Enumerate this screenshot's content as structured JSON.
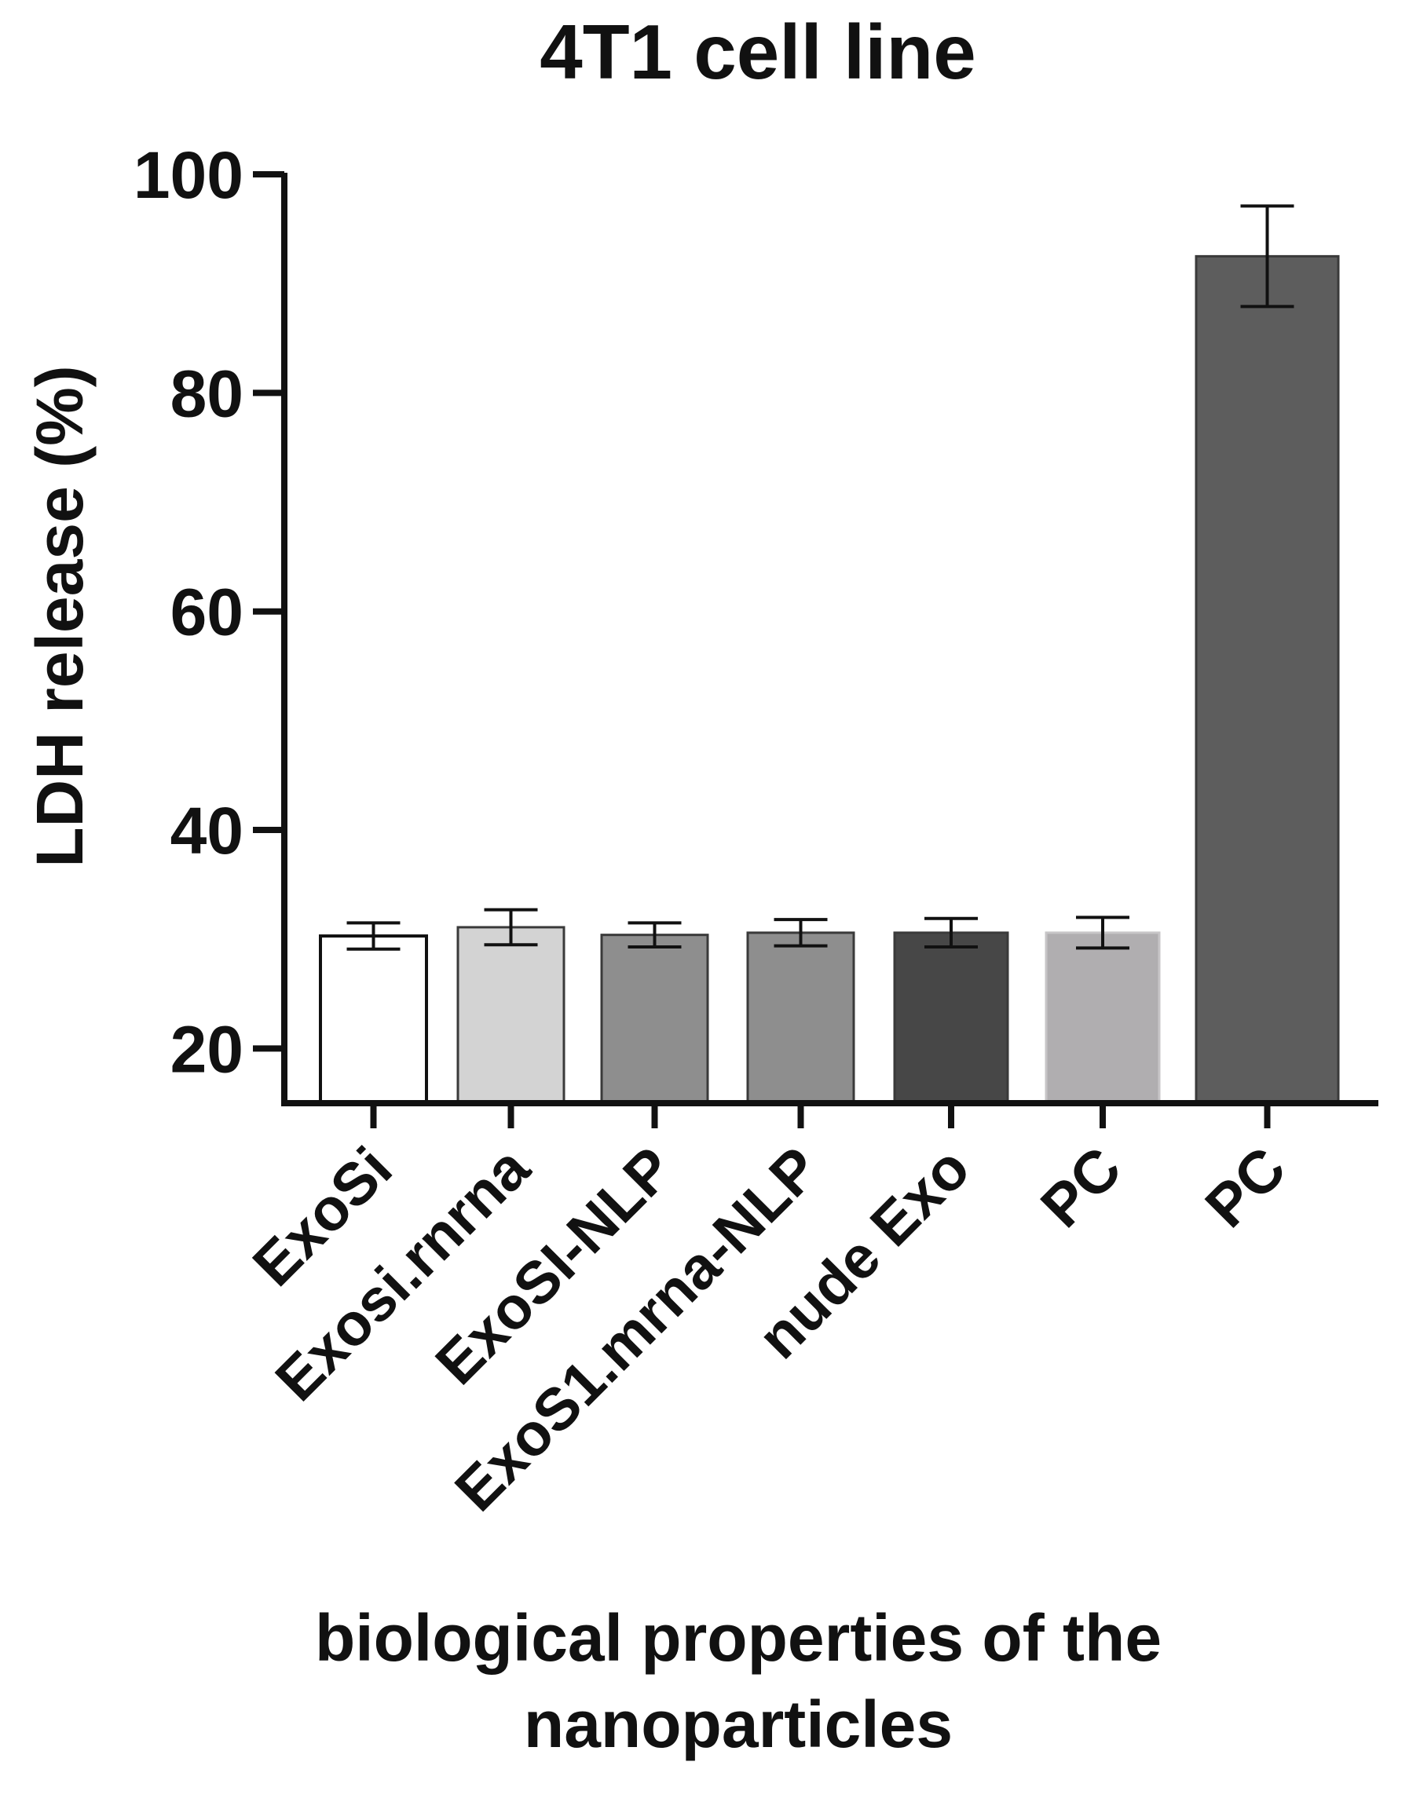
{
  "chart_data": {
    "type": "bar",
    "title": "4T1 cell line",
    "xlabel": "biological properties of the nanoparticles",
    "ylabel": "LDH release (%)",
    "ylim": [
      15,
      100
    ],
    "yticks": [
      20,
      40,
      60,
      80,
      100
    ],
    "categories": [
      "ExoSi",
      "Exosi.rnrna",
      "ExoSI-NLP",
      "ExoS1.mrna-NLP",
      "nude Exo",
      "PC",
      "PC"
    ],
    "values": [
      30.3,
      31.1,
      30.4,
      30.6,
      30.6,
      30.6,
      92.5
    ],
    "error": [
      1.2,
      1.6,
      1.1,
      1.2,
      1.3,
      1.4,
      4.6
    ],
    "colors": [
      "#ffffff",
      "#d3d3d3",
      "#8e8e8e",
      "#8e8e8e",
      "#474747",
      "#b0aeb0",
      "#5d5d5d"
    ],
    "grid": false
  }
}
